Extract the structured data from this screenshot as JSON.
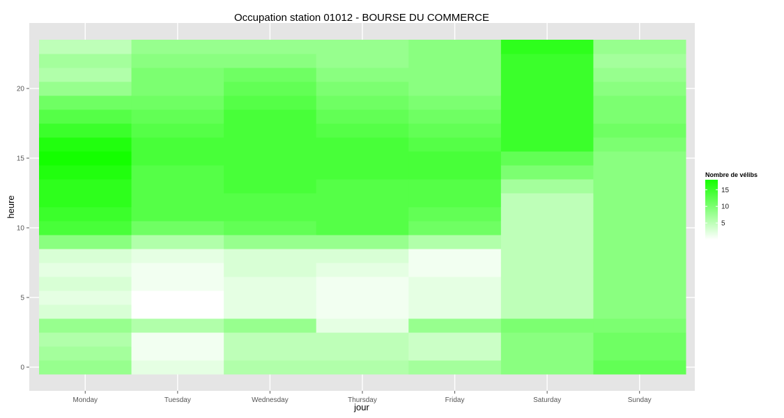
{
  "chart_data": {
    "type": "heatmap",
    "title": "Occupation station 01012 - BOURSE DU COMMERCE",
    "xlabel": "jour",
    "ylabel": "heure",
    "x_categories": [
      "Monday",
      "Tuesday",
      "Wednesday",
      "Thursday",
      "Friday",
      "Saturday",
      "Sunday"
    ],
    "y_hours": [
      0,
      1,
      2,
      3,
      4,
      5,
      6,
      7,
      8,
      9,
      10,
      11,
      12,
      13,
      14,
      15,
      16,
      17,
      18,
      19,
      20,
      21,
      22,
      23
    ],
    "y_ticks": [
      0,
      5,
      10,
      15,
      20
    ],
    "ylim": [
      -0.5,
      23.5
    ],
    "grid": true,
    "values_by_day": [
      [
        8,
        7,
        6,
        8,
        3,
        2,
        3,
        2,
        3,
        9,
        14,
        15,
        16,
        16,
        17,
        18,
        17,
        15,
        13,
        11,
        8,
        6,
        7,
        5
      ],
      [
        2,
        1,
        1,
        6,
        0,
        0,
        1,
        1,
        2,
        6,
        11,
        13,
        13,
        13,
        13,
        14,
        14,
        13,
        12,
        11,
        10,
        10,
        9,
        8
      ],
      [
        6,
        5,
        5,
        8,
        2,
        2,
        2,
        3,
        3,
        8,
        12,
        13,
        13,
        14,
        14,
        14,
        14,
        14,
        14,
        13,
        12,
        11,
        9,
        8
      ],
      [
        6,
        5,
        5,
        2,
        1,
        1,
        1,
        2,
        3,
        8,
        13,
        13,
        13,
        13,
        14,
        14,
        14,
        13,
        12,
        11,
        10,
        9,
        8,
        8
      ],
      [
        7,
        4,
        4,
        8,
        2,
        2,
        2,
        1,
        1,
        6,
        11,
        12,
        13,
        13,
        14,
        14,
        13,
        12,
        11,
        10,
        9,
        9,
        9,
        9
      ],
      [
        9,
        9,
        9,
        10,
        5,
        5,
        5,
        5,
        5,
        5,
        5,
        5,
        5,
        7,
        10,
        12,
        15,
        15,
        15,
        15,
        15,
        15,
        15,
        16
      ],
      [
        12,
        11,
        11,
        10,
        9,
        9,
        9,
        9,
        9,
        9,
        9,
        9,
        9,
        9,
        9,
        9,
        10,
        11,
        10,
        10,
        9,
        8,
        7,
        8
      ]
    ],
    "legend": {
      "title": "Nombre de vélibs",
      "ticks": [
        5,
        10,
        15
      ],
      "min": 0,
      "max": 18,
      "low_color": "#ffffff",
      "high_color": "#14ff00",
      "placement": "right"
    },
    "colors": {
      "panel_background": "#e5e5e5",
      "grid_line": "#ffffff"
    }
  }
}
